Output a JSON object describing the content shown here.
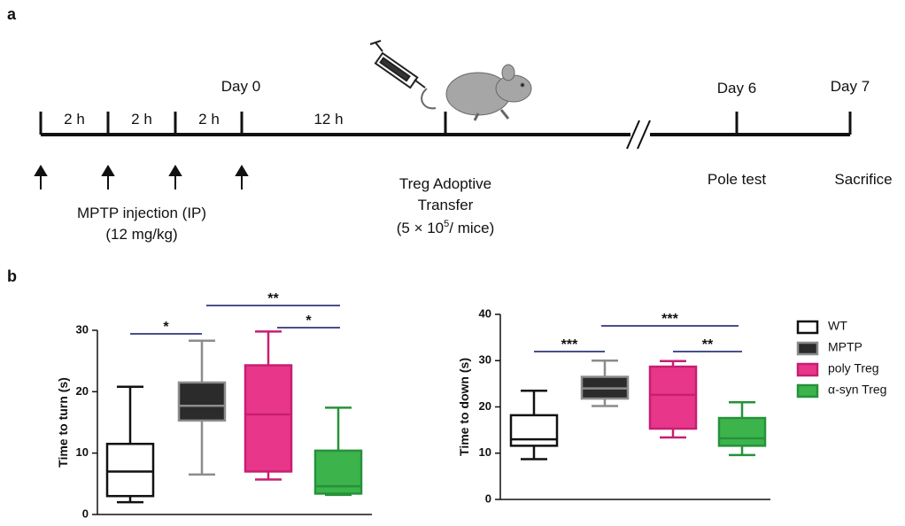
{
  "panel_a": "a",
  "panel_b": "b",
  "timeline": {
    "intervals": [
      "2 h",
      "2 h",
      "2 h",
      "12 h"
    ],
    "day0": "Day 0",
    "day6": "Day 6",
    "day7": "Day 7",
    "injection": [
      "MPTP injection (IP)",
      "(12 mg/kg)"
    ],
    "transfer": [
      "Treg Adoptive",
      "Transfer",
      "(5 × 10",
      "5",
      "/ mice)"
    ],
    "pole": "Pole test",
    "sacrifice": "Sacrifice"
  },
  "chart_data": [
    {
      "type": "box",
      "ylabel": "Time to turn (s)",
      "ylim": [
        0,
        30
      ],
      "yticks": [
        0,
        10,
        20,
        30
      ],
      "annotations": [
        "*",
        "**",
        "*"
      ],
      "series": [
        {
          "color": "#ffffff",
          "stroke": "#111111",
          "min": 2,
          "q1": 3,
          "median": 7,
          "q3": 11.5,
          "max": 20.8
        },
        {
          "color": "#2b2b2b",
          "stroke": "#8c8c8c",
          "min": 6.5,
          "q1": 15.3,
          "median": 17.7,
          "q3": 21.5,
          "max": 28.3
        },
        {
          "color": "#e8378a",
          "stroke": "#c81e72",
          "min": 5.7,
          "q1": 7,
          "median": 16.3,
          "q3": 24.3,
          "max": 29.8
        },
        {
          "color": "#3cb44b",
          "stroke": "#26923a",
          "min": 3.2,
          "q1": 3.4,
          "median": 4.6,
          "q3": 10.4,
          "max": 17.4
        }
      ]
    },
    {
      "type": "box",
      "ylabel": "Time to down  (s)",
      "ylim": [
        0,
        40
      ],
      "yticks": [
        0,
        10,
        20,
        30,
        40
      ],
      "annotations": [
        "***",
        "***",
        "**"
      ],
      "series": [
        {
          "name": "WT",
          "color": "#ffffff",
          "stroke": "#111111",
          "min": 8.7,
          "q1": 11.6,
          "median": 13,
          "q3": 18.2,
          "max": 23.5
        },
        {
          "name": "MPTP",
          "color": "#2b2b2b",
          "stroke": "#8c8c8c",
          "min": 20.2,
          "q1": 21.8,
          "median": 24,
          "q3": 26.5,
          "max": 30
        },
        {
          "name": "poly Treg",
          "color": "#e8378a",
          "stroke": "#c81e72",
          "min": 13.4,
          "q1": 15.3,
          "median": 22.6,
          "q3": 28.7,
          "max": 29.9
        },
        {
          "name": "α-syn Treg",
          "color": "#3cb44b",
          "stroke": "#26923a",
          "min": 9.6,
          "q1": 11.6,
          "median": 13.2,
          "q3": 17.6,
          "max": 21
        }
      ]
    }
  ]
}
